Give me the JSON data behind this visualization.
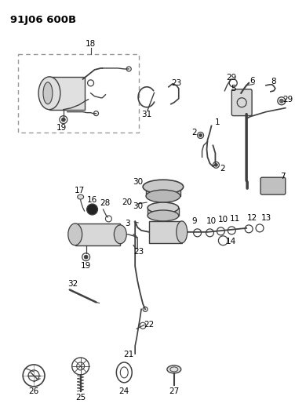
{
  "title": "91J06 600B",
  "bg": "#ffffff",
  "lc": "#404040",
  "tc": "#000000",
  "figsize": [
    3.9,
    5.33
  ],
  "dpi": 100
}
